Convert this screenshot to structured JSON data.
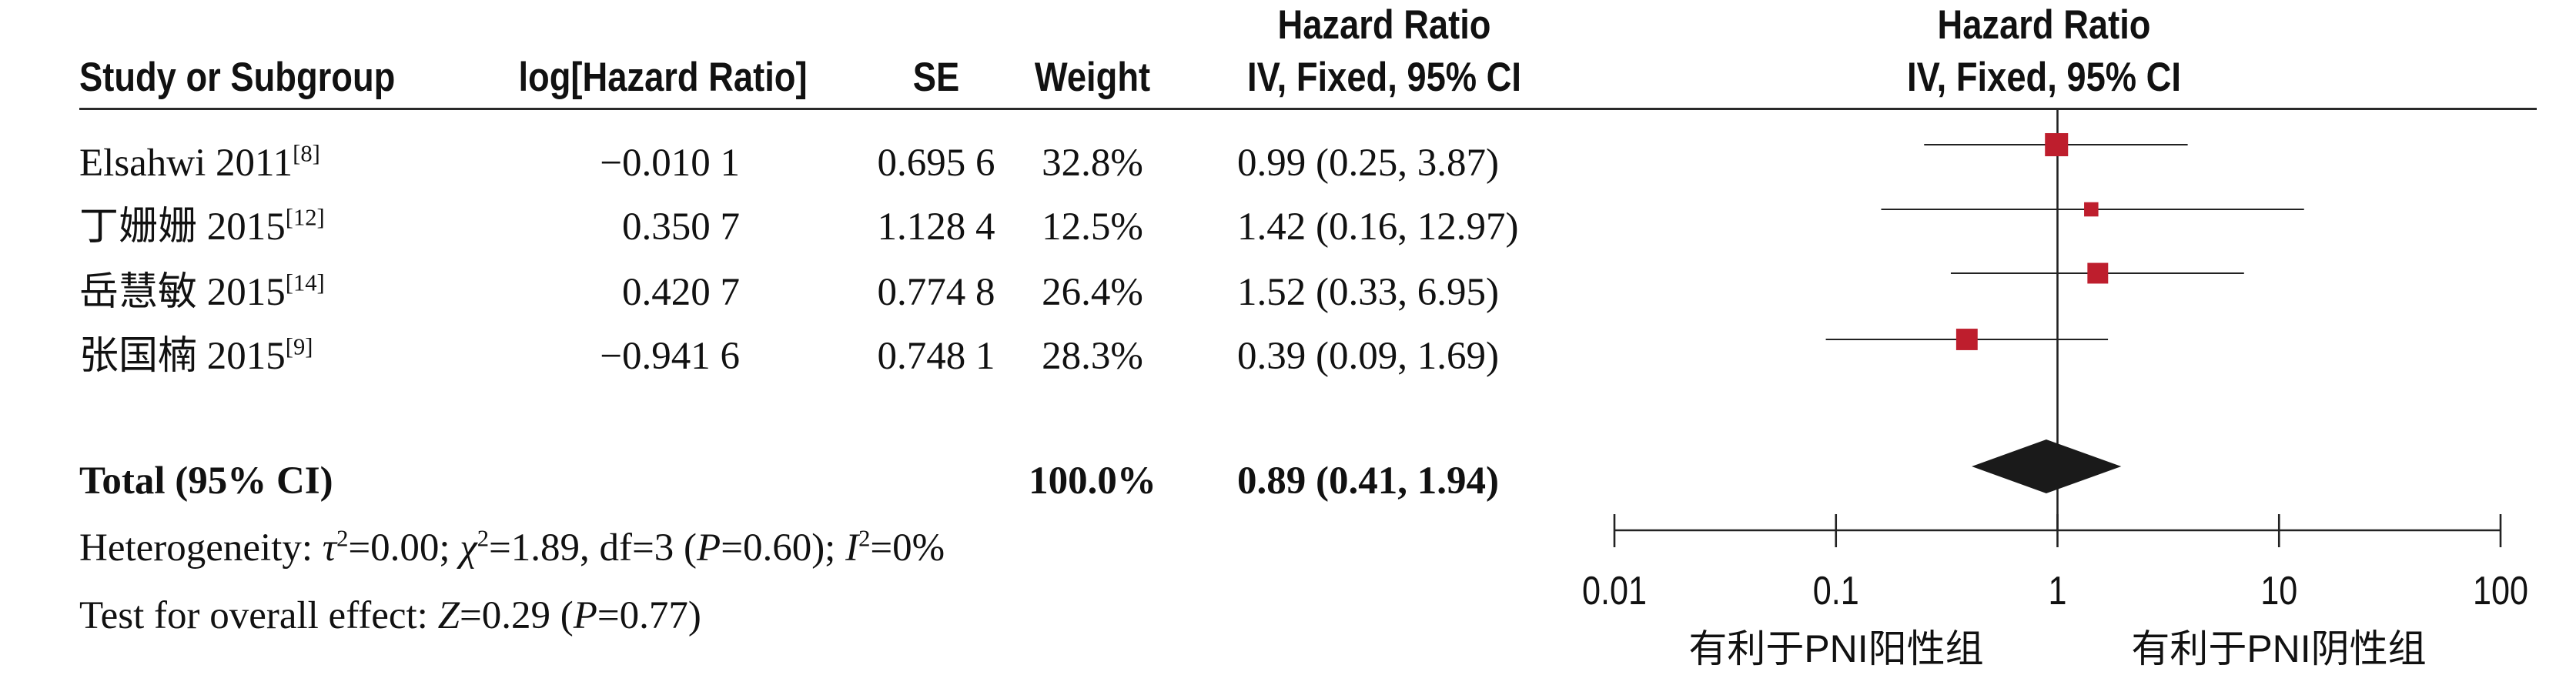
{
  "table": {
    "columns": {
      "study": "Study or Subgroup",
      "log_hr": "log[Hazard Ratio]",
      "se": "SE",
      "weight": "Weight",
      "hr_title": "Hazard Ratio",
      "hr_method": "IV, Fixed, 95% CI"
    },
    "rows": [
      {
        "study": "Elsahwi 2011",
        "ref": "[8]",
        "log_hr": "−0.010 1",
        "se": "0.695 6",
        "weight": "32.8%",
        "hr_ci": "0.99 (0.25, 3.87)"
      },
      {
        "study": "丁姗姗 2015",
        "ref": "[12]",
        "log_hr": "0.350 7",
        "se": "1.128 4",
        "weight": "12.5%",
        "hr_ci": "1.42 (0.16, 12.97)"
      },
      {
        "study": "岳慧敏 2015",
        "ref": "[14]",
        "log_hr": "0.420 7",
        "se": "0.774 8",
        "weight": "26.4%",
        "hr_ci": "1.52 (0.33, 6.95)"
      },
      {
        "study": "张国楠 2015",
        "ref": "[9]",
        "log_hr": "−0.941 6",
        "se": "0.748 1",
        "weight": "28.3%",
        "hr_ci": "0.39 (0.09, 1.69)"
      }
    ],
    "total": {
      "label": "Total (95% CI)",
      "weight": "100.0%",
      "hr_ci": "0.89 (0.41, 1.94)"
    },
    "heterogeneity": [
      "Heterogeneity: ",
      "τ",
      "2",
      "=0.00; ",
      "χ",
      "2",
      "=1.89, df=3 (",
      "P",
      "=0.60); ",
      "I",
      "2",
      "=0%"
    ],
    "overall_effect": [
      "Test for overall effect: ",
      "Z",
      "=0.29 (",
      "P",
      "=0.77)"
    ]
  },
  "colors": {
    "square": "#be1e2d",
    "diamond": "#1a1a1a",
    "lines": "#222222"
  },
  "chart_data": {
    "type": "scatter",
    "title": "Hazard Ratio",
    "subtitle": "IV, Fixed, 95% CI",
    "x_scale": "log",
    "xlim": [
      0.01,
      100
    ],
    "x_ticks": [
      0.01,
      0.1,
      1,
      10,
      100
    ],
    "x_tick_labels": [
      "0.01",
      "0.1",
      "1",
      "10",
      "100"
    ],
    "x_label_left": "有利于PNI阳性组",
    "x_label_right": "有利于PNI阴性组",
    "grid": false,
    "reference_line": 1,
    "points": [
      {
        "hr": 0.99,
        "ci": [
          0.25,
          3.87
        ],
        "weight": 32.8
      },
      {
        "hr": 1.42,
        "ci": [
          0.16,
          12.97
        ],
        "weight": 12.5
      },
      {
        "hr": 1.52,
        "ci": [
          0.33,
          6.95
        ],
        "weight": 26.4
      },
      {
        "hr": 0.39,
        "ci": [
          0.09,
          1.69
        ],
        "weight": 28.3
      }
    ],
    "pooled": {
      "hr": 0.89,
      "ci": [
        0.41,
        1.94
      ]
    }
  }
}
